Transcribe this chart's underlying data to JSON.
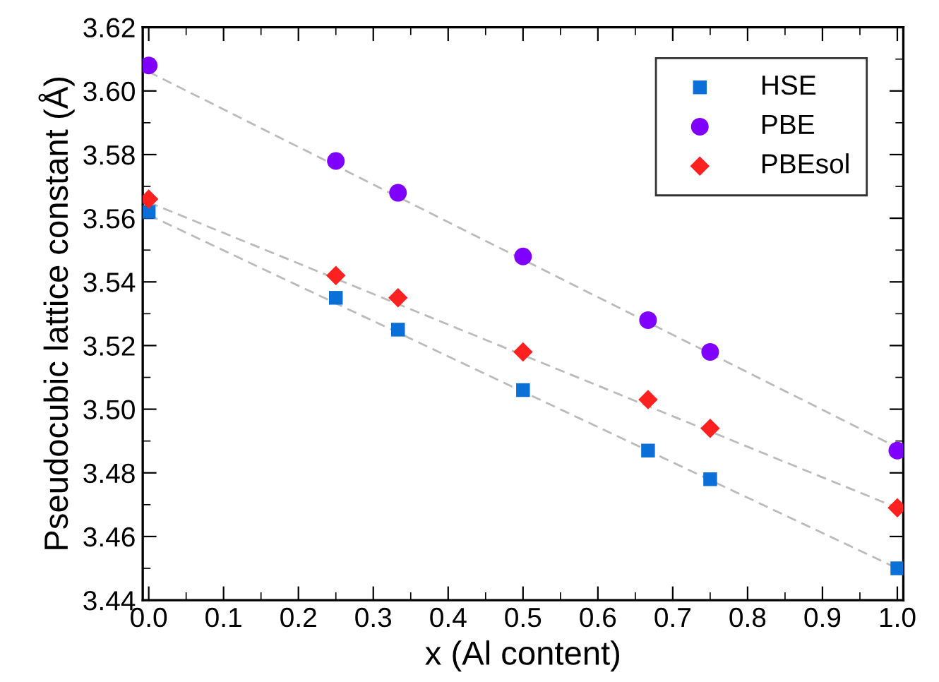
{
  "chart_data": {
    "type": "scatter",
    "xlabel": "x (Al content)",
    "ylabel": "Pseudocubic lattice constant (Å)",
    "xlim": [
      -0.008,
      1.008
    ],
    "xticks": [
      {
        "value": 0,
        "label": "0.0"
      },
      0.1,
      0.2,
      0.3,
      0.4,
      0.5,
      0.6,
      0.7,
      0.8,
      0.9,
      {
        "value": 1,
        "label": "1.0"
      }
    ],
    "ylim": [
      3.44,
      3.62
    ],
    "yticks": [
      {
        "value": 3.44,
        "label": "3.44"
      },
      {
        "value": 3.46,
        "label": "3.46"
      },
      {
        "value": 3.48,
        "label": "3.48"
      },
      {
        "value": 3.5,
        "label": "3.50"
      },
      {
        "value": 3.52,
        "label": "3.52"
      },
      {
        "value": 3.54,
        "label": "3.54"
      },
      {
        "value": 3.56,
        "label": "3.56"
      },
      {
        "value": 3.58,
        "label": "3.58"
      },
      {
        "value": 3.6,
        "label": "3.60"
      },
      {
        "value": 3.62,
        "label": "3.62"
      }
    ],
    "grid": false,
    "legend": "top right",
    "series": [
      {
        "name": "HSE",
        "marker": "square",
        "color": "#0a6fd6",
        "x": [
          0,
          0.25,
          0.333,
          0.5,
          0.667,
          0.75,
          1
        ],
        "values": [
          3.562,
          3.535,
          3.525,
          3.506,
          3.487,
          3.478,
          3.45
        ]
      },
      {
        "name": "PBE",
        "marker": "circle",
        "color": "#8000ff",
        "x": [
          0,
          0.25,
          0.333,
          0.5,
          0.667,
          0.75,
          1
        ],
        "values": [
          3.608,
          3.578,
          3.568,
          3.548,
          3.528,
          3.518,
          3.487
        ]
      },
      {
        "name": "PBEsol",
        "marker": "diamond",
        "color": "#ff2020",
        "x": [
          0,
          0.25,
          0.333,
          0.5,
          0.667,
          0.75,
          1
        ],
        "values": [
          3.566,
          3.542,
          3.535,
          3.518,
          3.503,
          3.494,
          3.469
        ]
      },
      {
        "type": "line",
        "line_style": "dashed",
        "color": "#bbbbbb",
        "x": [
          0,
          1
        ],
        "values": [
          3.561,
          3.45
        ]
      },
      {
        "type": "line",
        "line_style": "dashed",
        "color": "#bbbbbb",
        "x": [
          0,
          1
        ],
        "values": [
          3.606,
          3.488
        ]
      },
      {
        "type": "line",
        "line_style": "dashed",
        "color": "#bbbbbb",
        "x": [
          0,
          1
        ],
        "values": [
          3.565,
          3.469
        ]
      }
    ]
  }
}
